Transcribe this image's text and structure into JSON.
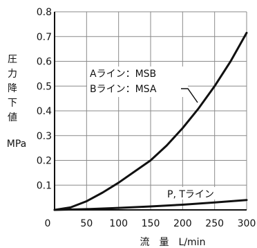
{
  "chart_data": {
    "type": "line",
    "title": "",
    "xlabel": "流　量　L/min",
    "ylabel_chars": [
      "圧",
      "力",
      "降",
      "下",
      "値"
    ],
    "ylabel_unit": "MPa",
    "xlim": [
      0,
      300
    ],
    "ylim": [
      0,
      0.8
    ],
    "xticks": [
      0,
      50,
      100,
      150,
      200,
      250,
      300
    ],
    "yticks": [
      0.1,
      0.2,
      0.3,
      0.4,
      0.5,
      0.6,
      0.7,
      0.8
    ],
    "grid": true,
    "series": [
      {
        "x": [
          0,
          25,
          50,
          75,
          100,
          125,
          150,
          175,
          200,
          225,
          250,
          275,
          300
        ],
        "y": [
          0.0,
          0.01,
          0.035,
          0.07,
          0.11,
          0.155,
          0.2,
          0.26,
          0.33,
          0.41,
          0.5,
          0.6,
          0.715
        ]
      },
      {
        "x": [
          0,
          50,
          100,
          150,
          200,
          250,
          300
        ],
        "y": [
          0.0,
          0.003,
          0.008,
          0.014,
          0.021,
          0.03,
          0.04
        ]
      }
    ],
    "annotations": [
      {
        "text": "Aライン：MSB"
      },
      {
        "text": "Bライン：MSA"
      },
      {
        "text": "P, Tライン"
      }
    ]
  }
}
